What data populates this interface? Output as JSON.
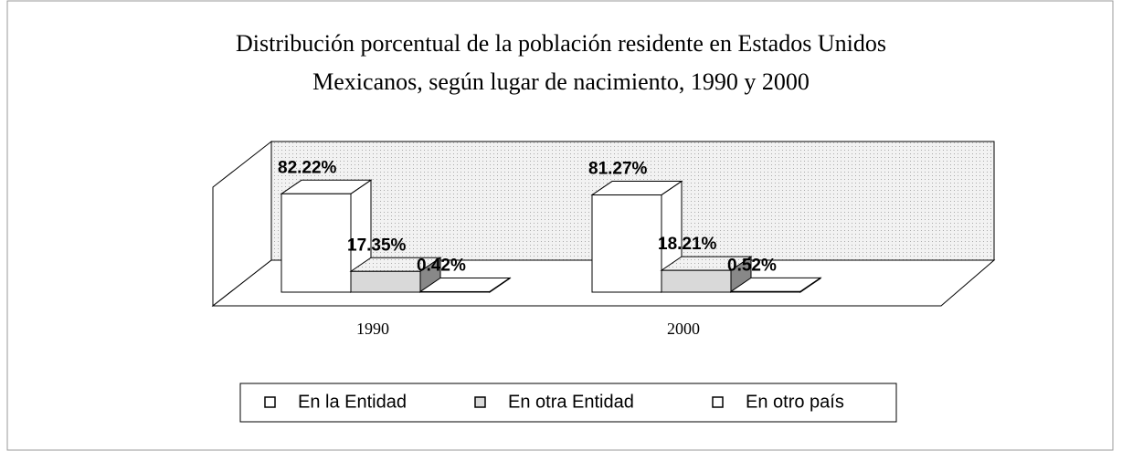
{
  "chart_data": {
    "type": "bar3d",
    "title": [
      "Distribución porcentual de la población residente en Estados Unidos",
      "Mexicanos, según lugar de nacimiento, 1990 y  2000"
    ],
    "categories": [
      "1990",
      "2000"
    ],
    "series": [
      {
        "name": "En la Entidad",
        "color": "#ffffff",
        "values": [
          82.22,
          81.27
        ],
        "value_labels": [
          "82.22%",
          "81.27%"
        ]
      },
      {
        "name": "En otra Entidad",
        "color": "#d9d9d9",
        "values": [
          17.35,
          18.21
        ],
        "value_labels": [
          "17.35%",
          "18.21%"
        ]
      },
      {
        "name": "En otro país",
        "color": "#ffffff",
        "values": [
          0.42,
          0.52
        ],
        "value_labels": [
          "0.42%",
          "0.52%"
        ]
      }
    ],
    "legend": "bottom"
  }
}
